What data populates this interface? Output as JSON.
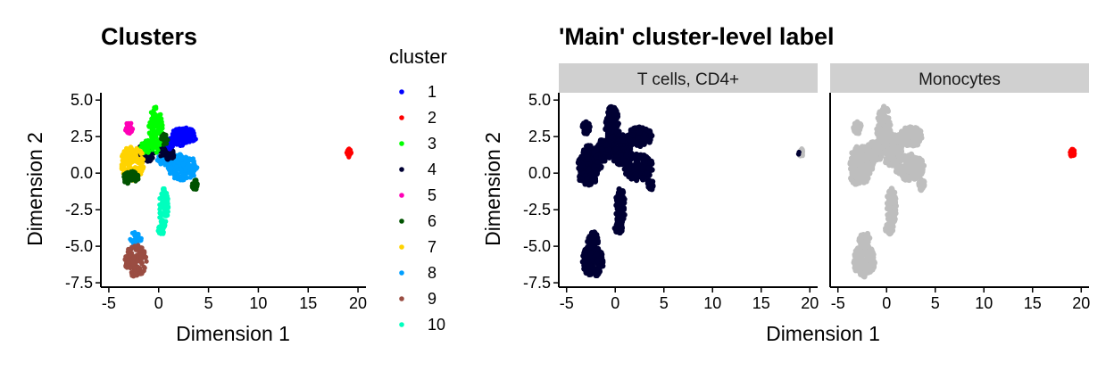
{
  "chart_data": [
    {
      "type": "scatter",
      "title": "Clusters",
      "xlabel": "Dimension 1",
      "ylabel": "Dimension 2",
      "xlim": [
        -5.8,
        20.8
      ],
      "ylim": [
        -7.8,
        5.5
      ],
      "xticks": [
        -5,
        0,
        5,
        10,
        15,
        20
      ],
      "xtick_labels": [
        "-5",
        "0",
        "5",
        "10",
        "15",
        "20"
      ],
      "yticks": [
        5,
        2.5,
        0,
        -2.5,
        -5,
        -7.5
      ],
      "ytick_labels": [
        "5.0",
        "2.5",
        "0.0",
        "-2.5",
        "-5.0",
        "-7.5"
      ],
      "grid": false,
      "legend": {
        "title": "cluster",
        "placement": "right",
        "entries": [
          {
            "label": "1",
            "color": "#0000ff"
          },
          {
            "label": "2",
            "color": "#ff0000"
          },
          {
            "label": "3",
            "color": "#00ff00"
          },
          {
            "label": "4",
            "color": "#000033"
          },
          {
            "label": "5",
            "color": "#ff00b6"
          },
          {
            "label": "6",
            "color": "#005300"
          },
          {
            "label": "7",
            "color": "#ffd300"
          },
          {
            "label": "8",
            "color": "#009fff"
          },
          {
            "label": "9",
            "color": "#9a4d42"
          },
          {
            "label": "10",
            "color": "#00ffbe"
          }
        ]
      },
      "series": [
        {
          "cluster": "1",
          "color": "#0000ff",
          "clouds": [
            {
              "cx": 2.5,
              "cy": 2.5,
              "rx": 1.3,
              "ry": 0.65
            },
            {
              "cx": 1.1,
              "cy": 2.0,
              "rx": 0.6,
              "ry": 0.4
            }
          ]
        },
        {
          "cluster": "2",
          "color": "#ff0000",
          "clouds": [
            {
              "cx": 19.1,
              "cy": 1.4,
              "rx": 0.25,
              "ry": 0.3
            }
          ]
        },
        {
          "cluster": "3",
          "color": "#00ff00",
          "clouds": [
            {
              "cx": -0.3,
              "cy": 3.0,
              "rx": 0.7,
              "ry": 1.6
            },
            {
              "cx": -1.3,
              "cy": 1.8,
              "rx": 0.5,
              "ry": 0.5
            }
          ]
        },
        {
          "cluster": "4",
          "color": "#000033",
          "clouds": [
            {
              "cx": -1.3,
              "cy": 1.4,
              "rx": 0.9,
              "ry": 0.7
            },
            {
              "cx": 0.8,
              "cy": 1.4,
              "rx": 0.9,
              "ry": 0.5
            }
          ]
        },
        {
          "cluster": "5",
          "color": "#ff00b6",
          "clouds": [
            {
              "cx": -3.0,
              "cy": 3.1,
              "rx": 0.4,
              "ry": 0.4
            }
          ]
        },
        {
          "cluster": "6",
          "color": "#005300",
          "clouds": [
            {
              "cx": 3.6,
              "cy": -0.8,
              "rx": 0.3,
              "ry": 0.4
            },
            {
              "cx": -2.8,
              "cy": -0.3,
              "rx": 0.9,
              "ry": 0.5
            },
            {
              "cx": 0.6,
              "cy": 2.3,
              "rx": 0.4,
              "ry": 0.4
            }
          ]
        },
        {
          "cluster": "7",
          "color": "#ffd300",
          "clouds": [
            {
              "cx": -2.6,
              "cy": 0.7,
              "rx": 1.2,
              "ry": 1.2
            }
          ]
        },
        {
          "cluster": "8",
          "color": "#009fff",
          "clouds": [
            {
              "cx": 2.4,
              "cy": 0.4,
              "rx": 1.5,
              "ry": 0.9
            },
            {
              "cx": 0.6,
              "cy": 0.9,
              "rx": 0.8,
              "ry": 0.4
            },
            {
              "cx": -2.3,
              "cy": -4.5,
              "rx": 0.6,
              "ry": 0.5
            }
          ]
        },
        {
          "cluster": "9",
          "color": "#9a4d42",
          "clouds": [
            {
              "cx": -2.3,
              "cy": -6.0,
              "rx": 1.1,
              "ry": 1.1
            }
          ]
        },
        {
          "cluster": "10",
          "color": "#00ffbe",
          "clouds": [
            {
              "cx": 0.5,
              "cy": -2.3,
              "rx": 0.5,
              "ry": 1.3
            },
            {
              "cx": 0.3,
              "cy": -3.8,
              "rx": 0.4,
              "ry": 0.4
            }
          ]
        }
      ]
    },
    {
      "type": "scatter",
      "title": "'Main' cluster-level label",
      "xlabel": "Dimension 1",
      "ylabel": "Dimension 2",
      "xlim": [
        -5.8,
        20.8
      ],
      "ylim": [
        -7.8,
        5.5
      ],
      "xticks": [
        -5,
        0,
        5,
        10,
        15,
        20
      ],
      "xtick_labels": [
        "-5",
        "0",
        "5",
        "10",
        "15",
        "20"
      ],
      "yticks": [
        5,
        2.5,
        0,
        -2.5,
        -5,
        -7.5
      ],
      "ytick_labels": [
        "5.0",
        "2.5",
        "0.0",
        "-2.5",
        "-5.0",
        "-7.5"
      ],
      "grid": false,
      "facets": [
        {
          "strip": "T cells, CD4+",
          "highlight_color": "#000033",
          "highlight": "main_cloud",
          "background_color": "#bebebe"
        },
        {
          "strip": "Monocytes",
          "highlight_color": "#ff0000",
          "highlight": "outlier_cloud",
          "background_color": "#bebebe"
        }
      ]
    }
  ]
}
